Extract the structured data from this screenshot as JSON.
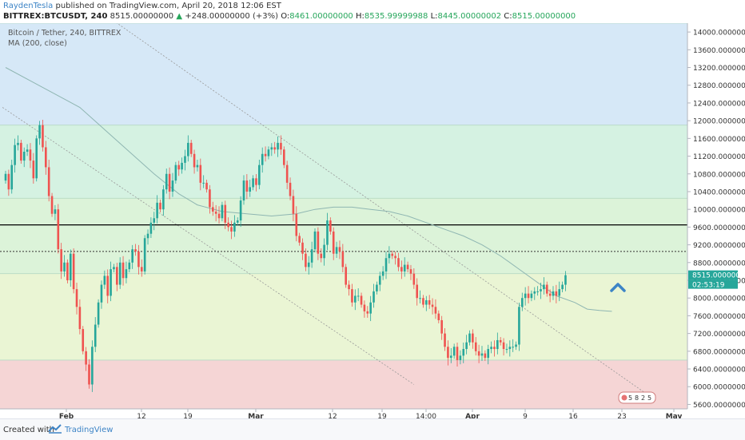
{
  "header": {
    "author": "RaydenTesla",
    "published": "published on TradingView.com, April 20, 2018 12:06 EST",
    "symbol": "BITTREX:BTCUSDT, 240",
    "price": "8515.00000000",
    "change": "+248.00000000 (+3%)",
    "o_label": "O:",
    "o_value": "8461.00000000",
    "h_label": "H:",
    "h_value": "8535.99999988",
    "l_label": "L:",
    "l_value": "8445.00000002",
    "c_label": "C:",
    "c_value": "8515.00000000"
  },
  "legend": {
    "pair": "Bitcoin / Tether, 240, BITTREX",
    "indicator": "MA (200, close)"
  },
  "price_label": {
    "value": "8515.00000000",
    "countdown": "02:53:19"
  },
  "badge_digits": [
    "5",
    "8",
    "2",
    "5"
  ],
  "footer": {
    "created": "Created with",
    "brand": "TradingView"
  },
  "colors": {
    "up": "#26a69a",
    "down": "#ef5350",
    "zone_blue": "#d6e8f7",
    "zone_green": "#d5f2e2",
    "zone_yellow": "#eaf5d4",
    "zone_red": "#f5d5d5",
    "ma": "#8fb6b2",
    "accent": "#3d84c6"
  },
  "chart_data": {
    "type": "candlestick",
    "y_ticks": [
      "14000.00000000",
      "13600.00000000",
      "13200.00000000",
      "12800.00000000",
      "12400.00000000",
      "12000.00000000",
      "11600.00000000",
      "11200.00000000",
      "10800.00000000",
      "10400.00000000",
      "10000.00000000",
      "9600.00000000",
      "9200.00000000",
      "8800.00000000",
      "8400.00000000",
      "8000.00000000",
      "7600.00000000",
      "7200.00000000",
      "6800.00000000",
      "6400.00000000",
      "6000.00000000",
      "5600.00000000"
    ],
    "ylim": [
      5500,
      14200
    ],
    "x_ticks": [
      {
        "label": "Feb",
        "bold": true
      },
      {
        "label": "12",
        "bold": false
      },
      {
        "label": "19",
        "bold": false
      },
      {
        "label": "Mar",
        "bold": true
      },
      {
        "label": "12",
        "bold": false
      },
      {
        "label": "19",
        "bold": false
      },
      {
        "label": "14:00",
        "bold": false
      },
      {
        "label": "Apr",
        "bold": true
      },
      {
        "label": "9",
        "bold": false
      },
      {
        "label": "16",
        "bold": false
      },
      {
        "label": "23",
        "bold": false
      },
      {
        "label": "May",
        "bold": true
      }
    ],
    "zones": [
      {
        "from": 11900,
        "to": 14200,
        "color": "#d6e8f7"
      },
      {
        "from": 10250,
        "to": 11900,
        "color": "#d5f2e2"
      },
      {
        "from": 8550,
        "to": 10250,
        "color": "#dcf3d9"
      },
      {
        "from": 6600,
        "to": 8550,
        "color": "#eaf5d4"
      },
      {
        "from": 5500,
        "to": 6600,
        "color": "#f5d5d5"
      }
    ],
    "horizontal_lines": [
      {
        "price": 9650,
        "style": "solid",
        "color": "#000000"
      },
      {
        "price": 9050,
        "style": "dotted",
        "color": "#333333"
      }
    ],
    "trendlines": [
      {
        "points": [
          [
            -1,
            12300
          ],
          [
            132,
            6050
          ]
        ],
        "color": "#999999"
      },
      {
        "points": [
          [
            34,
            14300
          ],
          [
            210,
            5700
          ]
        ],
        "color": "#999999"
      }
    ],
    "ma_200": [
      [
        0,
        13200
      ],
      [
        8,
        12900
      ],
      [
        16,
        12600
      ],
      [
        24,
        12300
      ],
      [
        32,
        11800
      ],
      [
        40,
        11300
      ],
      [
        48,
        10800
      ],
      [
        56,
        10350
      ],
      [
        62,
        10100
      ],
      [
        70,
        9950
      ],
      [
        78,
        9900
      ],
      [
        86,
        9850
      ],
      [
        94,
        9900
      ],
      [
        100,
        10000
      ],
      [
        106,
        10050
      ],
      [
        112,
        10050
      ],
      [
        118,
        10000
      ],
      [
        124,
        9950
      ],
      [
        130,
        9850
      ],
      [
        136,
        9700
      ],
      [
        142,
        9550
      ],
      [
        148,
        9400
      ],
      [
        154,
        9200
      ],
      [
        160,
        8950
      ],
      [
        166,
        8650
      ],
      [
        172,
        8350
      ],
      [
        178,
        8050
      ],
      [
        184,
        7900
      ],
      [
        188,
        7750
      ],
      [
        192,
        7720
      ],
      [
        196,
        7700
      ]
    ],
    "closes": [
      10800,
      10450,
      11000,
      11450,
      11500,
      11100,
      11300,
      11350,
      11100,
      10700,
      11600,
      11900,
      11400,
      10950,
      10300,
      9900,
      10000,
      9100,
      8600,
      8800,
      8400,
      9000,
      8200,
      7800,
      7300,
      6800,
      6500,
      6050,
      6900,
      7400,
      7900,
      8300,
      8500,
      8050,
      8650,
      8700,
      8300,
      8800,
      8450,
      8650,
      8800,
      9100,
      9050,
      8700,
      8600,
      9350,
      9450,
      9700,
      9800,
      10150,
      10000,
      10450,
      10800,
      10400,
      10650,
      11000,
      10900,
      11050,
      11200,
      11500,
      11250,
      10950,
      11000,
      10600,
      10600,
      10450,
      10050,
      9950,
      9900,
      9800,
      10100,
      9700,
      9600,
      9500,
      9700,
      9750,
      10200,
      10650,
      10400,
      10500,
      10700,
      10550,
      11000,
      11250,
      11200,
      11350,
      11400,
      11350,
      11500,
      11350,
      11000,
      10600,
      10300,
      9900,
      9400,
      9250,
      9000,
      8700,
      8800,
      9100,
      9500,
      9000,
      8900,
      9200,
      9750,
      9500,
      9000,
      9150,
      9050,
      8700,
      8300,
      8200,
      7900,
      8050,
      8050,
      7850,
      7700,
      7650,
      7900,
      8150,
      8300,
      8500,
      8600,
      8900,
      9000,
      8950,
      8900,
      8700,
      8600,
      8750,
      8650,
      8550,
      8300,
      8000,
      8000,
      7850,
      7950,
      7850,
      7800,
      7650,
      7500,
      7200,
      6900,
      6650,
      6700,
      6900,
      6600,
      6700,
      6850,
      7000,
      7200,
      7000,
      6800,
      6700,
      6750,
      6650,
      6850,
      6900,
      6850,
      7050,
      7000,
      6850,
      6850,
      6900,
      6900,
      6950,
      7800,
      8000,
      8100,
      8000,
      8100,
      8150,
      8150,
      8200,
      8300,
      8100,
      8050,
      8150,
      8050,
      8200,
      8300,
      8515
    ]
  }
}
